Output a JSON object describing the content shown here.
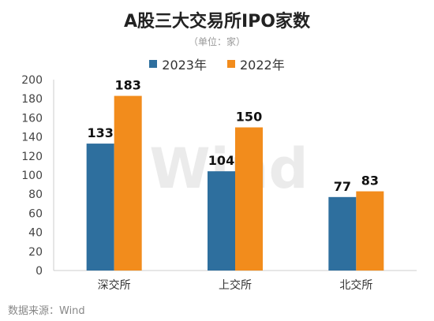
{
  "watermark": "Wind",
  "source": "数据来源：Wind",
  "colors": {
    "series_2023": "#2e6f9e",
    "series_2022": "#f28c1c",
    "axis": "#cccccc"
  },
  "chart_data": {
    "type": "bar",
    "title": "A股三大交易所IPO家数",
    "subtitle": "（单位：家）",
    "categories": [
      "深交所",
      "上交所",
      "北交所"
    ],
    "series": [
      {
        "name": "2023年",
        "values": [
          133,
          104,
          77
        ]
      },
      {
        "name": "2022年",
        "values": [
          183,
          150,
          83
        ]
      }
    ],
    "ylim": [
      0,
      200
    ],
    "yticks": [
      0,
      20,
      40,
      60,
      80,
      100,
      120,
      140,
      160,
      180,
      200
    ],
    "grid": false,
    "legend": "top-center",
    "data_labels": true
  }
}
